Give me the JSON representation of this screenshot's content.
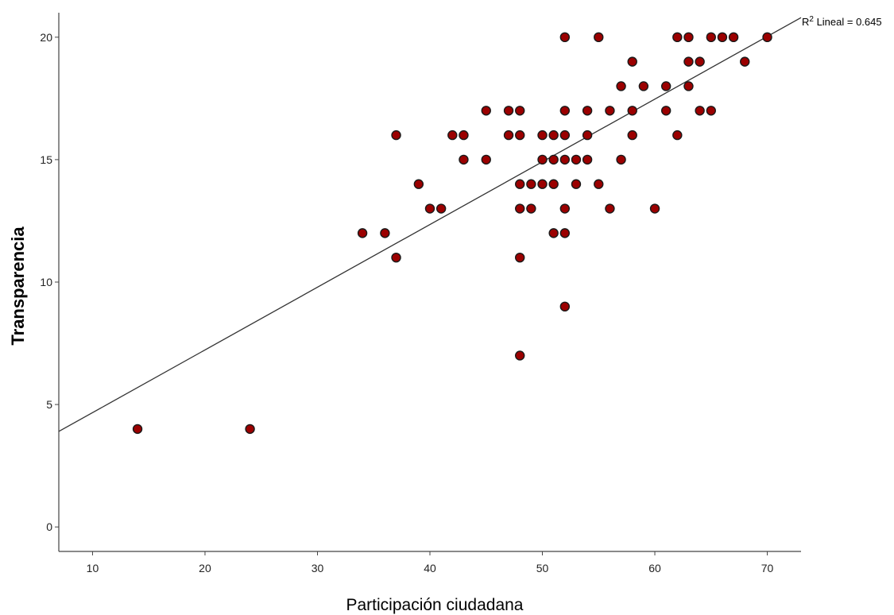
{
  "chart_data": {
    "type": "scatter",
    "title": "",
    "xlabel": "Participación ciudadana",
    "ylabel": "Transparencia",
    "xlim": [
      7,
      73
    ],
    "ylim": [
      -1,
      21
    ],
    "x_ticks": [
      10,
      20,
      30,
      40,
      50,
      60,
      70
    ],
    "y_ticks": [
      0,
      5,
      10,
      15,
      20
    ],
    "grid": false,
    "point_color": "#9b0000",
    "fit_line": {
      "label_prefix": "R",
      "label_sup": "2",
      "label_rest": " Lineal = 0.645",
      "r_squared": 0.645,
      "start": [
        7,
        3.9
      ],
      "end": [
        73,
        20.8
      ]
    },
    "points": [
      [
        14,
        4
      ],
      [
        24,
        4
      ],
      [
        34,
        12
      ],
      [
        36,
        12
      ],
      [
        37,
        16
      ],
      [
        37,
        11
      ],
      [
        39,
        14
      ],
      [
        40,
        13
      ],
      [
        41,
        13
      ],
      [
        42,
        16
      ],
      [
        43,
        16
      ],
      [
        43,
        15
      ],
      [
        45,
        17
      ],
      [
        45,
        15
      ],
      [
        47,
        17
      ],
      [
        47,
        16
      ],
      [
        48,
        17
      ],
      [
        48,
        16
      ],
      [
        48,
        14
      ],
      [
        48,
        13
      ],
      [
        48,
        11
      ],
      [
        48,
        7
      ],
      [
        49,
        14
      ],
      [
        49,
        13
      ],
      [
        50,
        16
      ],
      [
        50,
        15
      ],
      [
        50,
        14
      ],
      [
        51,
        16
      ],
      [
        51,
        15
      ],
      [
        51,
        14
      ],
      [
        51,
        12
      ],
      [
        52,
        20
      ],
      [
        52,
        17
      ],
      [
        52,
        16
      ],
      [
        52,
        15
      ],
      [
        52,
        13
      ],
      [
        52,
        12
      ],
      [
        52,
        9
      ],
      [
        53,
        15
      ],
      [
        53,
        14
      ],
      [
        54,
        17
      ],
      [
        54,
        16
      ],
      [
        54,
        15
      ],
      [
        55,
        20
      ],
      [
        55,
        14
      ],
      [
        56,
        17
      ],
      [
        56,
        13
      ],
      [
        57,
        18
      ],
      [
        57,
        15
      ],
      [
        58,
        19
      ],
      [
        58,
        17
      ],
      [
        58,
        16
      ],
      [
        59,
        18
      ],
      [
        60,
        13
      ],
      [
        61,
        18
      ],
      [
        61,
        17
      ],
      [
        62,
        20
      ],
      [
        62,
        16
      ],
      [
        63,
        20
      ],
      [
        63,
        19
      ],
      [
        63,
        18
      ],
      [
        64,
        19
      ],
      [
        64,
        17
      ],
      [
        65,
        20
      ],
      [
        65,
        17
      ],
      [
        66,
        20
      ],
      [
        67,
        20
      ],
      [
        68,
        19
      ],
      [
        70,
        20
      ]
    ]
  }
}
